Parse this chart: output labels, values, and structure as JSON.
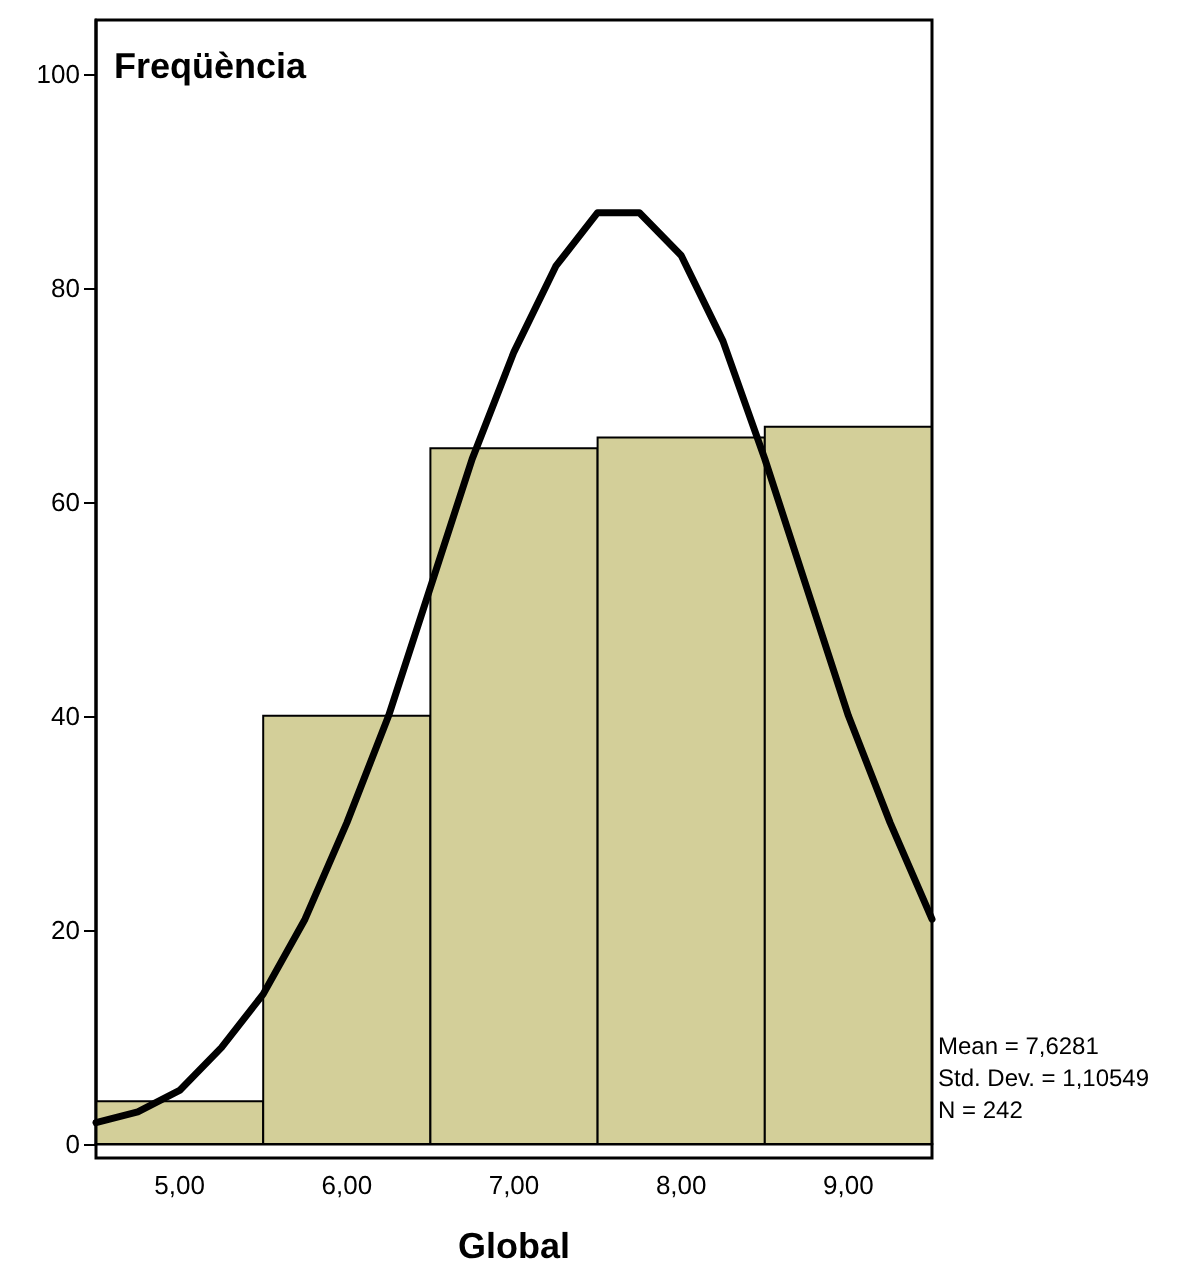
{
  "chart_data": {
    "type": "histogram",
    "ylabel": "Freqüència",
    "xlabel": "Global",
    "annotations": [
      "Mean = 7,6281",
      "Std. Dev. = 1,10549",
      "N = 242"
    ],
    "xlim": [
      4.5,
      9.5
    ],
    "xticks": [
      {
        "value": 5,
        "label": "5,00"
      },
      {
        "value": 6,
        "label": "6,00"
      },
      {
        "value": 7,
        "label": "7,00"
      },
      {
        "value": 8,
        "label": "8,00"
      },
      {
        "value": 9,
        "label": "9,00"
      }
    ],
    "ylim": [
      0,
      105
    ],
    "yticks": [
      0,
      20,
      40,
      60,
      80,
      100
    ],
    "grid": false,
    "series": [
      {
        "bins": [
          4.5,
          5.5,
          6.5,
          7.5,
          8.5,
          9.5
        ],
        "values": [
          4,
          40,
          65,
          66,
          67
        ],
        "color": "#d3cf99"
      },
      {
        "type": "line",
        "color": "#000000",
        "marker": "none",
        "line_style": "solid",
        "x": [
          4.5,
          4.75,
          5,
          5.25,
          5.5,
          5.75,
          6,
          6.25,
          6.5,
          6.75,
          7,
          7.25,
          7.5,
          7.63,
          7.75,
          8,
          8.25,
          8.5,
          8.75,
          9,
          9.25,
          9.5
        ],
        "values": [
          2,
          3,
          5,
          9,
          14,
          21,
          30,
          40,
          52,
          64,
          74,
          82,
          87,
          87,
          87,
          83,
          75,
          64,
          52,
          40,
          30,
          21
        ]
      }
    ]
  }
}
